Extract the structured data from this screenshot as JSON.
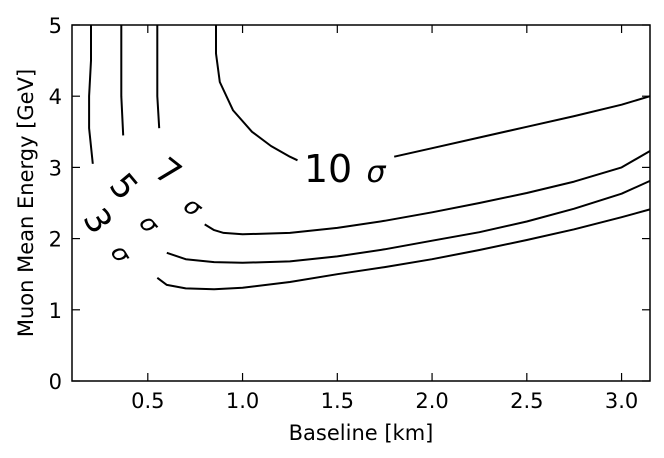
{
  "chart_data": {
    "type": "contour",
    "title": "",
    "xlabel": "Baseline [km]",
    "ylabel": "Muon Mean Energy [GeV]",
    "xlim": [
      0.1,
      3.15
    ],
    "ylim": [
      0,
      5
    ],
    "x_ticks": [
      0.5,
      1.0,
      1.5,
      2.0,
      2.5,
      3.0
    ],
    "x_tick_labels": [
      "0.5",
      "1.0",
      "1.5",
      "2.0",
      "2.5",
      "3.0"
    ],
    "y_ticks": [
      0,
      1,
      2,
      3,
      4,
      5
    ],
    "y_tick_labels": [
      "0",
      "1",
      "2",
      "3",
      "4",
      "5"
    ],
    "grid": false,
    "contours": [
      {
        "level": "3",
        "label_number": "3",
        "label_symbol": "σ",
        "segments": [
          [
            [
              0.2,
              5.0
            ],
            [
              0.2,
              4.5
            ],
            [
              0.19,
              4.0
            ],
            [
              0.19,
              3.55
            ],
            [
              0.21,
              3.05
            ]
          ],
          [
            [
              0.55,
              1.45
            ],
            [
              0.6,
              1.35
            ],
            [
              0.7,
              1.3
            ],
            [
              0.85,
              1.29
            ],
            [
              1.0,
              1.31
            ],
            [
              1.25,
              1.39
            ],
            [
              1.5,
              1.5
            ],
            [
              1.75,
              1.6
            ],
            [
              2.0,
              1.71
            ],
            [
              2.25,
              1.84
            ],
            [
              2.5,
              1.98
            ],
            [
              2.75,
              2.13
            ],
            [
              3.0,
              2.3
            ],
            [
              3.15,
              2.41
            ]
          ]
        ]
      },
      {
        "level": "5",
        "label_number": "5",
        "label_symbol": "σ",
        "segments": [
          [
            [
              0.36,
              5.0
            ],
            [
              0.36,
              4.5
            ],
            [
              0.36,
              4.0
            ],
            [
              0.37,
              3.45
            ]
          ],
          [
            [
              0.6,
              1.8
            ],
            [
              0.7,
              1.71
            ],
            [
              0.85,
              1.67
            ],
            [
              1.0,
              1.66
            ],
            [
              1.25,
              1.68
            ],
            [
              1.5,
              1.75
            ],
            [
              1.75,
              1.85
            ],
            [
              2.0,
              1.97
            ],
            [
              2.25,
              2.09
            ],
            [
              2.5,
              2.24
            ],
            [
              2.75,
              2.42
            ],
            [
              3.0,
              2.63
            ],
            [
              3.15,
              2.81
            ]
          ]
        ]
      },
      {
        "level": "7",
        "label_number": "7",
        "label_symbol": "σ",
        "segments": [
          [
            [
              0.55,
              5.0
            ],
            [
              0.55,
              4.5
            ],
            [
              0.55,
              4.0
            ],
            [
              0.56,
              3.55
            ]
          ],
          [
            [
              0.8,
              2.2
            ],
            [
              0.85,
              2.12
            ],
            [
              0.9,
              2.08
            ],
            [
              1.0,
              2.06
            ],
            [
              1.25,
              2.08
            ],
            [
              1.5,
              2.15
            ],
            [
              1.75,
              2.25
            ],
            [
              2.0,
              2.37
            ],
            [
              2.25,
              2.5
            ],
            [
              2.5,
              2.64
            ],
            [
              2.75,
              2.8
            ],
            [
              3.0,
              3.0
            ],
            [
              3.15,
              3.23
            ]
          ]
        ]
      },
      {
        "level": "10",
        "label_number": "10",
        "label_symbol": "σ",
        "segments": [
          [
            [
              0.86,
              5.0
            ],
            [
              0.86,
              4.6
            ],
            [
              0.88,
              4.2
            ],
            [
              0.95,
              3.8
            ],
            [
              1.05,
              3.5
            ],
            [
              1.15,
              3.3
            ],
            [
              1.25,
              3.15
            ],
            [
              1.29,
              3.1
            ]
          ],
          [
            [
              1.8,
              3.15
            ],
            [
              2.0,
              3.27
            ],
            [
              2.25,
              3.42
            ],
            [
              2.5,
              3.57
            ],
            [
              2.75,
              3.72
            ],
            [
              3.0,
              3.88
            ],
            [
              3.15,
              4.0
            ]
          ]
        ]
      }
    ]
  }
}
